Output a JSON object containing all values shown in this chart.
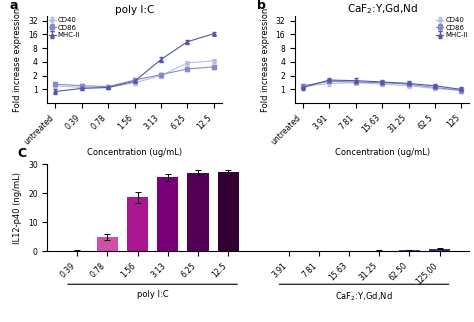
{
  "panel_a": {
    "title": "poly I:C",
    "xlabel": "Concentration (ug/mL)",
    "ylabel": "Fold increase expression",
    "x_labels": [
      "untreated",
      "0.39",
      "0.78",
      "1.56",
      "3.13",
      "6.25",
      "12.5"
    ],
    "x_vals": [
      0,
      1,
      2,
      3,
      4,
      5,
      6
    ],
    "CD40": [
      1.2,
      1.1,
      1.1,
      1.4,
      2.0,
      3.8,
      4.2
    ],
    "CD86": [
      1.3,
      1.2,
      1.15,
      1.6,
      2.1,
      2.8,
      3.1
    ],
    "MHC_II": [
      0.9,
      1.05,
      1.1,
      1.5,
      4.5,
      11.0,
      16.5
    ],
    "CD40_err": [
      0.15,
      0.1,
      0.08,
      0.15,
      0.25,
      0.4,
      0.35
    ],
    "CD86_err": [
      0.12,
      0.1,
      0.08,
      0.15,
      0.2,
      0.3,
      0.3
    ],
    "MHC_II_err": [
      0.1,
      0.1,
      0.1,
      0.2,
      0.5,
      1.0,
      1.2
    ],
    "ylim": [
      0.5,
      40
    ],
    "yticks": [
      1,
      2,
      4,
      8,
      16,
      32
    ],
    "color_CD40": "#b8bce8",
    "color_CD86": "#8888cc",
    "color_MHC_II": "#5555aa"
  },
  "panel_b": {
    "title": "CaF2:Y,Gd,Nd",
    "xlabel": "Concentration (ug/mL)",
    "ylabel": "Fold increase expression",
    "x_labels": [
      "untreated",
      "3.91",
      "7.81",
      "15.63",
      "31.25",
      "62.5",
      "125"
    ],
    "x_vals": [
      0,
      1,
      2,
      3,
      4,
      5,
      6
    ],
    "CD40": [
      1.15,
      1.35,
      1.4,
      1.3,
      1.2,
      1.05,
      0.95
    ],
    "CD86": [
      1.2,
      1.5,
      1.45,
      1.4,
      1.3,
      1.1,
      0.95
    ],
    "MHC_II": [
      1.1,
      1.6,
      1.55,
      1.45,
      1.35,
      1.2,
      1.0
    ],
    "CD40_err": [
      0.1,
      0.15,
      0.12,
      0.12,
      0.12,
      0.1,
      0.1
    ],
    "CD86_err": [
      0.1,
      0.15,
      0.12,
      0.12,
      0.12,
      0.1,
      0.1
    ],
    "MHC_II_err": [
      0.12,
      0.2,
      0.18,
      0.15,
      0.15,
      0.12,
      0.1
    ],
    "ylim": [
      0.5,
      40
    ],
    "yticks": [
      1,
      2,
      4,
      8,
      16,
      32
    ],
    "color_CD40": "#b8bce8",
    "color_CD86": "#8888cc",
    "color_MHC_II": "#5555aa"
  },
  "panel_c": {
    "ylabel": "IL12-p40 (ng/mL)",
    "poly_labels": [
      "0.39",
      "0.78",
      "1.56",
      "3.13",
      "6.25",
      "12.5"
    ],
    "poly_vals": [
      0.2,
      4.8,
      18.5,
      25.5,
      27.0,
      27.2
    ],
    "poly_errs": [
      0.1,
      1.0,
      2.0,
      1.2,
      0.8,
      0.8
    ],
    "caf_labels": [
      "3.91",
      "7.81",
      "15.63",
      "31.25",
      "62.50",
      "125.00"
    ],
    "caf_vals": [
      0.1,
      0.1,
      0.15,
      0.2,
      0.3,
      0.8
    ],
    "caf_errs": [
      0.05,
      0.05,
      0.05,
      0.05,
      0.1,
      0.2
    ],
    "poly_colors": [
      "#f0b0d8",
      "#d050a8",
      "#aa1890",
      "#7a007a",
      "#550055",
      "#330033"
    ],
    "caf_colors": [
      "#8888cc",
      "#7777bb",
      "#6666aa",
      "#555599",
      "#444488",
      "#333377"
    ],
    "ylim": [
      0,
      30
    ],
    "yticks": [
      0,
      10,
      20,
      30
    ],
    "group1_label": "poly I:C",
    "group2_label": "CaF2:Y,Gd,Nd"
  },
  "bg_color": "#ffffff",
  "label_fontsize": 6,
  "tick_fontsize": 5.5,
  "title_fontsize": 7.5
}
